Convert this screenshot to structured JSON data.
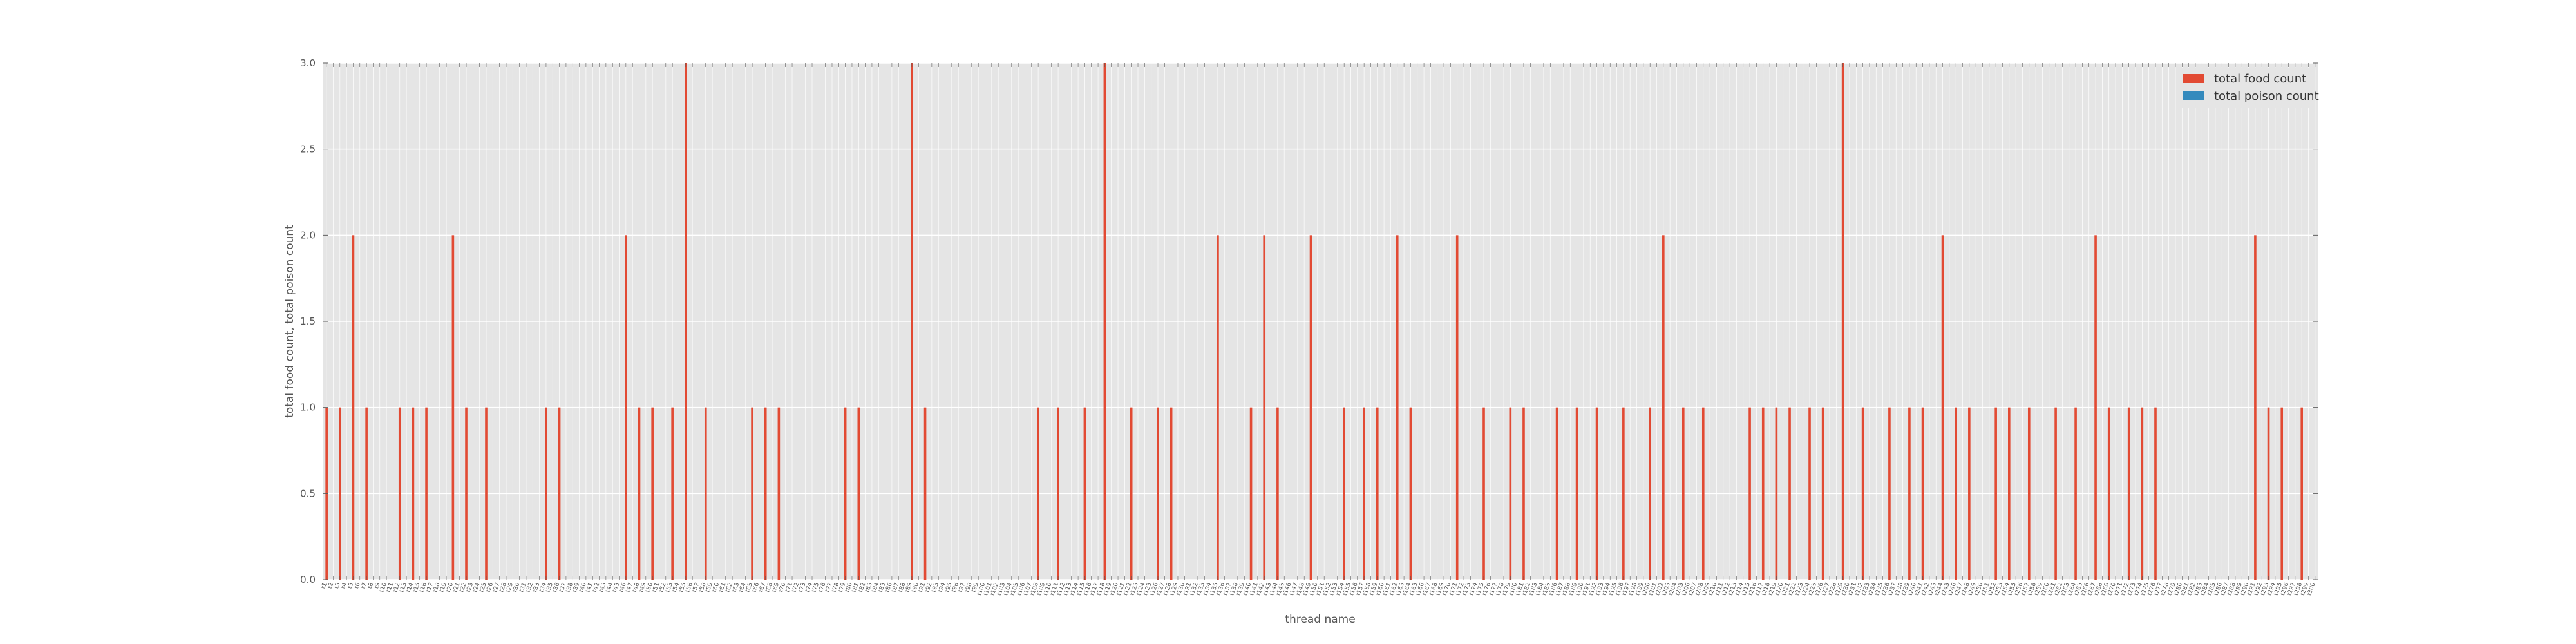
{
  "chart_data": {
    "type": "bar",
    "title": "",
    "xlabel": "thread name",
    "ylabel": "total food count, total poison count",
    "ylim": [
      0,
      3
    ],
    "yticks": [
      "0.0",
      "0.5",
      "1.0",
      "1.5",
      "2.0",
      "2.5",
      "3.0"
    ],
    "grid": true,
    "legend_position": "top-right",
    "category_prefix": "t",
    "categories_count": 300,
    "series": [
      {
        "name": "total food count",
        "color": "#e24a33",
        "values": [
          1,
          0,
          1,
          0,
          2,
          0,
          1,
          0,
          0,
          0,
          0,
          1,
          0,
          1,
          0,
          1,
          0,
          0,
          0,
          2,
          0,
          1,
          0,
          0,
          1,
          0,
          0,
          0,
          0,
          0,
          0,
          0,
          0,
          1,
          0,
          1,
          0,
          0,
          0,
          0,
          0,
          0,
          0,
          0,
          0,
          2,
          0,
          1,
          0,
          1,
          0,
          0,
          1,
          0,
          3,
          0,
          0,
          1,
          0,
          0,
          0,
          0,
          0,
          0,
          1,
          0,
          1,
          0,
          1,
          0,
          0,
          0,
          0,
          0,
          0,
          0,
          0,
          0,
          1,
          0,
          1,
          0,
          0,
          0,
          0,
          0,
          0,
          0,
          3,
          0,
          1,
          0,
          0,
          0,
          0,
          0,
          0,
          0,
          0,
          0,
          0,
          0,
          0,
          0,
          0,
          0,
          0,
          1,
          0,
          0,
          1,
          0,
          0,
          0,
          1,
          0,
          0,
          3,
          0,
          0,
          0,
          1,
          0,
          0,
          0,
          1,
          0,
          1,
          0,
          0,
          0,
          0,
          0,
          0,
          2,
          0,
          0,
          0,
          0,
          1,
          0,
          2,
          0,
          1,
          0,
          0,
          0,
          0,
          2,
          0,
          0,
          0,
          0,
          1,
          0,
          0,
          1,
          0,
          1,
          0,
          0,
          2,
          0,
          1,
          0,
          0,
          0,
          0,
          0,
          0,
          2,
          0,
          0,
          0,
          1,
          0,
          0,
          0,
          1,
          0,
          1,
          0,
          0,
          0,
          0,
          1,
          0,
          0,
          1,
          0,
          0,
          1,
          0,
          0,
          0,
          1,
          0,
          0,
          0,
          1,
          0,
          2,
          0,
          0,
          1,
          0,
          0,
          1,
          0,
          0,
          0,
          0,
          0,
          0,
          1,
          0,
          1,
          0,
          1,
          0,
          1,
          0,
          0,
          1,
          0,
          1,
          0,
          0,
          3,
          0,
          0,
          1,
          0,
          0,
          0,
          1,
          0,
          0,
          1,
          0,
          1,
          0,
          0,
          2,
          0,
          1,
          0,
          1,
          0,
          0,
          0,
          1,
          0,
          1,
          0,
          0,
          1,
          0,
          0,
          0,
          1,
          0,
          0,
          1,
          0,
          0,
          2,
          0,
          1,
          0,
          0,
          1,
          0,
          1,
          0,
          1,
          0,
          0,
          0,
          0,
          0,
          0,
          0,
          0,
          0,
          0,
          0,
          0,
          0,
          0,
          2,
          0,
          1,
          0,
          1,
          0,
          0,
          1
        ],
        "omitted_note": ""
      },
      {
        "name": "total poison count",
        "color": "#348abd",
        "values": []
      }
    ]
  }
}
